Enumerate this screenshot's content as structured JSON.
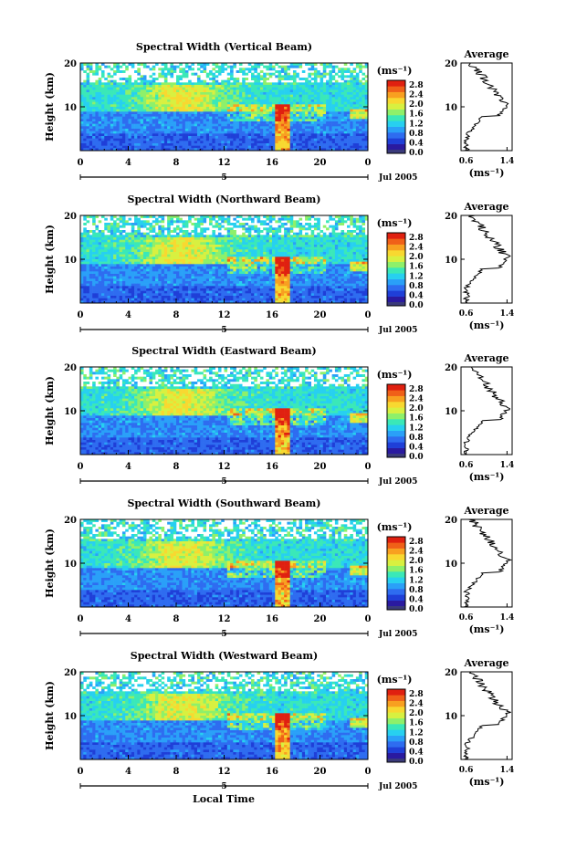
{
  "figure": {
    "xlabel": "Local Time",
    "date_label": "Jul 2005",
    "day_label": "5"
  },
  "chart_data": [
    {
      "type": "heatmap",
      "title": "Spectral Width (Vertical Beam)",
      "ylabel": "Height (km)",
      "xticks": [
        "0",
        "4",
        "8",
        "12",
        "16",
        "20",
        "0"
      ],
      "yticks": [
        "10",
        "20"
      ],
      "xlim": [
        0,
        24
      ],
      "ylim": [
        0,
        20
      ],
      "colorbar": {
        "label": "(ms⁻¹)",
        "ticks": [
          "2.8",
          "2.4",
          "2.0",
          "1.6",
          "1.2",
          "0.8",
          "0.4",
          "0.0"
        ]
      },
      "profile": {
        "title": "Average",
        "xlabel": "(ms⁻¹)",
        "xticks": [
          "0.6",
          "1.4"
        ],
        "yticks": [
          "10",
          "20"
        ],
        "xlim": [
          0.5,
          1.5
        ]
      }
    },
    {
      "type": "heatmap",
      "title": "Spectral Width (Northward Beam)",
      "ylabel": "Height (km)",
      "xticks": [
        "0",
        "4",
        "8",
        "12",
        "16",
        "20",
        "0"
      ],
      "yticks": [
        "10",
        "20"
      ],
      "xlim": [
        0,
        24
      ],
      "ylim": [
        0,
        20
      ],
      "colorbar": {
        "label": "(ms⁻¹)",
        "ticks": [
          "2.8",
          "2.4",
          "2.0",
          "1.6",
          "1.2",
          "0.8",
          "0.4",
          "0.0"
        ]
      },
      "profile": {
        "title": "Average",
        "xlabel": "(ms⁻¹)",
        "xticks": [
          "0.6",
          "1.4"
        ],
        "yticks": [
          "10",
          "20"
        ],
        "xlim": [
          0.5,
          1.5
        ]
      }
    },
    {
      "type": "heatmap",
      "title": "Spectral Width (Eastward Beam)",
      "ylabel": "Height (km)",
      "xticks": [
        "0",
        "4",
        "8",
        "12",
        "16",
        "20",
        "0"
      ],
      "yticks": [
        "10",
        "20"
      ],
      "xlim": [
        0,
        24
      ],
      "ylim": [
        0,
        20
      ],
      "colorbar": {
        "label": "(ms⁻¹)",
        "ticks": [
          "2.8",
          "2.4",
          "2.0",
          "1.6",
          "1.2",
          "0.8",
          "0.4",
          "0.0"
        ]
      },
      "profile": {
        "title": "Average",
        "xlabel": "(ms⁻¹)",
        "xticks": [
          "0.6",
          "1.4"
        ],
        "yticks": [
          "10",
          "20"
        ],
        "xlim": [
          0.5,
          1.5
        ]
      }
    },
    {
      "type": "heatmap",
      "title": "Spectral Width (Southward Beam)",
      "ylabel": "Height (km)",
      "xticks": [
        "0",
        "4",
        "8",
        "12",
        "16",
        "20",
        "0"
      ],
      "yticks": [
        "10",
        "20"
      ],
      "xlim": [
        0,
        24
      ],
      "ylim": [
        0,
        20
      ],
      "colorbar": {
        "label": "(ms⁻¹)",
        "ticks": [
          "2.8",
          "2.4",
          "2.0",
          "1.6",
          "1.2",
          "0.8",
          "0.4",
          "0.0"
        ]
      },
      "profile": {
        "title": "Average",
        "xlabel": "(ms⁻¹)",
        "xticks": [
          "0.6",
          "1.4"
        ],
        "yticks": [
          "10",
          "20"
        ],
        "xlim": [
          0.5,
          1.5
        ]
      }
    },
    {
      "type": "heatmap",
      "title": "Spectral Width (Westward Beam)",
      "ylabel": "Height (km)",
      "xticks": [
        "0",
        "4",
        "8",
        "12",
        "16",
        "20",
        "0"
      ],
      "yticks": [
        "10",
        "20"
      ],
      "xlim": [
        0,
        24
      ],
      "ylim": [
        0,
        20
      ],
      "colorbar": {
        "label": "(ms⁻¹)",
        "ticks": [
          "2.8",
          "2.4",
          "2.0",
          "1.6",
          "1.2",
          "0.8",
          "0.4",
          "0.0"
        ]
      },
      "profile": {
        "title": "Average",
        "xlabel": "(ms⁻¹)",
        "xticks": [
          "0.6",
          "1.4"
        ],
        "yticks": [
          "10",
          "20"
        ],
        "xlim": [
          0.5,
          1.5
        ]
      }
    }
  ],
  "colors": {
    "colormap": [
      "#2a1aa0",
      "#1f3fd8",
      "#2e6cf0",
      "#2aa0f8",
      "#27d0f0",
      "#3ae8b8",
      "#8ef06a",
      "#d8f040",
      "#f8d830",
      "#f8a020",
      "#f06018",
      "#e02010"
    ],
    "colorbar_bottom": "#3a3a7a"
  }
}
